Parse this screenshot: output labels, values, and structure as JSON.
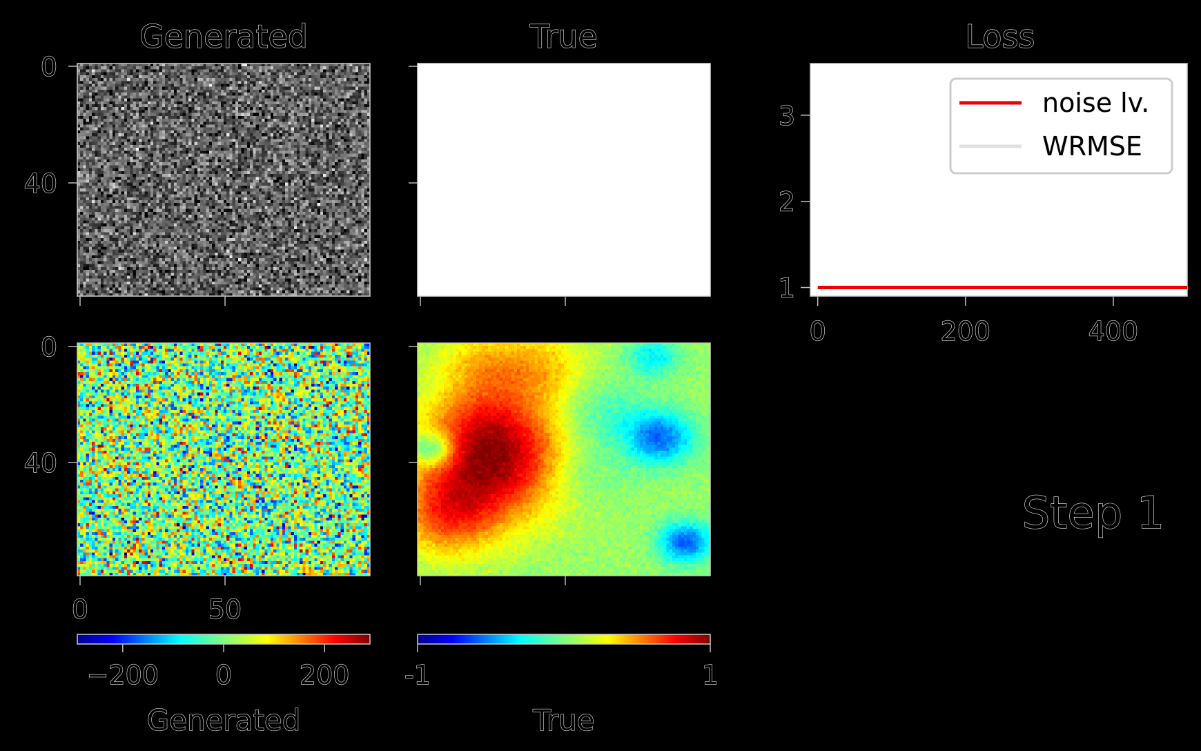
{
  "step_label": "Step 1",
  "chart_data": [
    {
      "type": "heatmap",
      "title": "Generated",
      "colormap": "gray",
      "grid_size": [
        100,
        80
      ],
      "y_ticks": [
        "0",
        "40"
      ],
      "x_ticks": [],
      "grid": false
    },
    {
      "type": "heatmap",
      "title": "True",
      "colormap": "gray",
      "grid_size": [
        100,
        80
      ],
      "y_ticks": [],
      "x_ticks": [],
      "grid": false
    },
    {
      "type": "line",
      "title": "Loss",
      "x_ticks": [
        "0",
        "200",
        "400"
      ],
      "y_ticks": [
        "1",
        "2",
        "3"
      ],
      "xlim": [
        -10,
        500
      ],
      "ylim": [
        0.9,
        3.6
      ],
      "series": [
        {
          "name": "noise lv.",
          "color": "#ee0000",
          "x": [
            0,
            500
          ],
          "values": [
            1.0,
            1.0
          ]
        },
        {
          "name": "WRMSE",
          "color": "#ffffff",
          "x": [],
          "values": []
        }
      ],
      "legend": "upper-right",
      "grid": false
    },
    {
      "type": "heatmap",
      "title": "",
      "colormap": "jet",
      "grid_size": [
        100,
        80
      ],
      "y_ticks": [
        "0",
        "40"
      ],
      "x_ticks": [
        "0",
        "50"
      ],
      "colorbar": {
        "ticks": [
          "−200",
          "0",
          "200"
        ],
        "tick_values": [
          -200,
          0,
          200
        ],
        "range": [
          -290,
          290
        ],
        "label": "Generated"
      }
    },
    {
      "type": "heatmap",
      "title": "",
      "colormap": "jet",
      "grid_size": [
        100,
        80
      ],
      "y_ticks": [],
      "x_ticks": [],
      "colorbar": {
        "ticks": [
          "-1",
          "1"
        ],
        "tick_values": [
          -1,
          1
        ],
        "range": [
          -1,
          1
        ],
        "label": "True"
      }
    }
  ]
}
